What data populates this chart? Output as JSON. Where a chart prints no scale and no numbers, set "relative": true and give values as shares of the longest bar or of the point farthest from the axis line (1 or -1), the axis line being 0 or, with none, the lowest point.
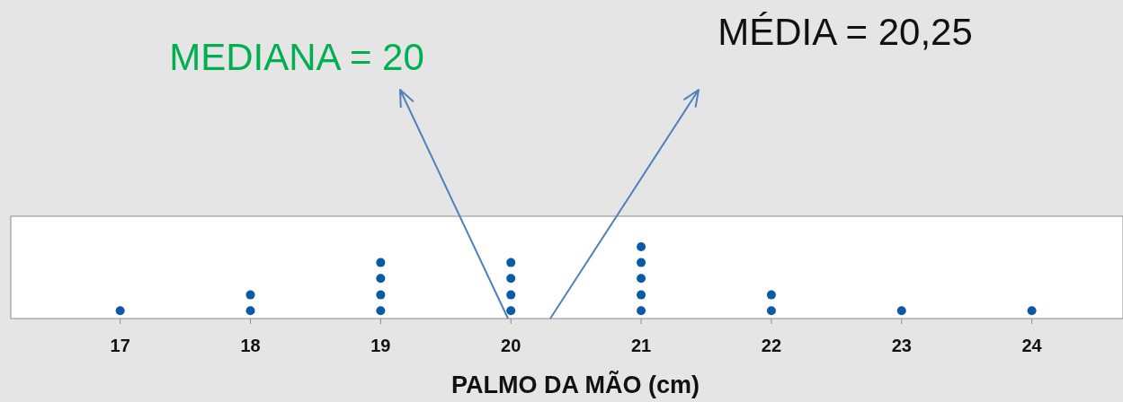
{
  "chart_data": {
    "type": "scatter",
    "relative": true,
    "xlabel": "PALMO DA MÃO (cm)",
    "xlim": [
      16.16,
      24.7
    ],
    "xticks": [
      17,
      18,
      19,
      20,
      21,
      22,
      23,
      24
    ],
    "marker": "circle",
    "series": [
      {
        "color": "#0b5aa8",
        "x": [
          17,
          18,
          18,
          19,
          19,
          19,
          19,
          20,
          20,
          20,
          20,
          21,
          21,
          21,
          21,
          21,
          22,
          22,
          23,
          24
        ],
        "values": [
          0.11,
          0.11,
          0.33,
          0.11,
          0.33,
          0.56,
          0.78,
          0.11,
          0.33,
          0.56,
          0.78,
          0.11,
          0.33,
          0.56,
          0.78,
          1,
          0.11,
          0.33,
          0.11,
          0.11
        ]
      }
    ],
    "annotations": [
      "MEDIANA = 20",
      "MÉDIA = 20,25"
    ]
  }
}
